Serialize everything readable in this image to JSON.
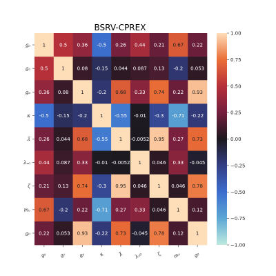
{
  "chart_data": {
    "type": "heatmap",
    "title": "BSRV-CPREX",
    "row_labels": [
      "gᵨ",
      "gₐ",
      "gₚ",
      "κ",
      "λ̃",
      "λₒ₀",
      "ζ",
      "mₒ",
      "g₀"
    ],
    "col_labels": [
      "gᵨ",
      "gₐ",
      "gₚ",
      "κ",
      "λ̃",
      "λₒ₀",
      "ζ",
      "mₒ",
      "g₀"
    ],
    "values": [
      [
        1,
        0.5,
        0.36,
        -0.5,
        0.26,
        0.44,
        0.21,
        0.67,
        0.22
      ],
      [
        0.5,
        1,
        0.08,
        -0.15,
        0.044,
        0.087,
        0.13,
        -0.2,
        0.053
      ],
      [
        0.36,
        0.08,
        1,
        -0.2,
        0.68,
        0.33,
        0.74,
        0.22,
        0.93
      ],
      [
        -0.5,
        -0.15,
        -0.2,
        1,
        -0.55,
        -0.01,
        -0.3,
        -0.71,
        -0.22
      ],
      [
        0.26,
        0.044,
        0.68,
        -0.55,
        1,
        -0.0052,
        0.95,
        0.27,
        0.73
      ],
      [
        0.44,
        0.087,
        0.33,
        -0.01,
        -0.0052,
        1,
        0.046,
        0.33,
        -0.045
      ],
      [
        0.21,
        0.13,
        0.74,
        -0.3,
        0.95,
        0.046,
        1,
        0.046,
        0.78
      ],
      [
        0.67,
        -0.2,
        0.22,
        -0.71,
        0.27,
        0.33,
        0.046,
        1,
        0.12
      ],
      [
        0.22,
        0.053,
        0.93,
        -0.22,
        0.73,
        -0.045,
        0.78,
        0.12,
        1
      ]
    ],
    "cell_labels": [
      [
        "1",
        "0.5",
        "0.36",
        "-0.5",
        "0.26",
        "0.44",
        "0.21",
        "0.67",
        "0.22"
      ],
      [
        "0.5",
        "1",
        "0.08",
        "-0.15",
        "0.044",
        "0.087",
        "0.13",
        "-0.2",
        "0.053"
      ],
      [
        "0.36",
        "0.08",
        "1",
        "-0.2",
        "0.68",
        "0.33",
        "0.74",
        "0.22",
        "0.93"
      ],
      [
        "-0.5",
        "-0.15",
        "-0.2",
        "1",
        "-0.55",
        "-0.01",
        "-0.3",
        "-0.71",
        "-0.22"
      ],
      [
        "0.26",
        "0.044",
        "0.68",
        "-0.55",
        "1",
        "-0.0052",
        "0.95",
        "0.27",
        "0.73"
      ],
      [
        "0.44",
        "0.087",
        "0.33",
        "-0.01",
        "-0.0052",
        "1",
        "0.046",
        "0.33",
        "-0.045"
      ],
      [
        "0.21",
        "0.13",
        "0.74",
        "-0.3",
        "0.95",
        "0.046",
        "1",
        "0.046",
        "0.78"
      ],
      [
        "0.67",
        "-0.2",
        "0.22",
        "-0.71",
        "0.27",
        "0.33",
        "0.046",
        "1",
        "0.12"
      ],
      [
        "0.22",
        "0.053",
        "0.93",
        "-0.22",
        "0.73",
        "-0.045",
        "0.78",
        "0.12",
        "1"
      ]
    ],
    "colorbar": {
      "range": [
        -1.0,
        1.0
      ],
      "ticks": [
        1.0,
        0.75,
        0.5,
        0.25,
        0.0,
        -0.25,
        -0.5,
        -0.75,
        -1.0
      ],
      "tick_labels": [
        "1.00",
        "0.75",
        "0.50",
        "0.25",
        "0.00",
        "−0.25",
        "−0.50",
        "−0.75",
        "−1.00"
      ]
    },
    "colormap": "icefire",
    "grid": false
  }
}
